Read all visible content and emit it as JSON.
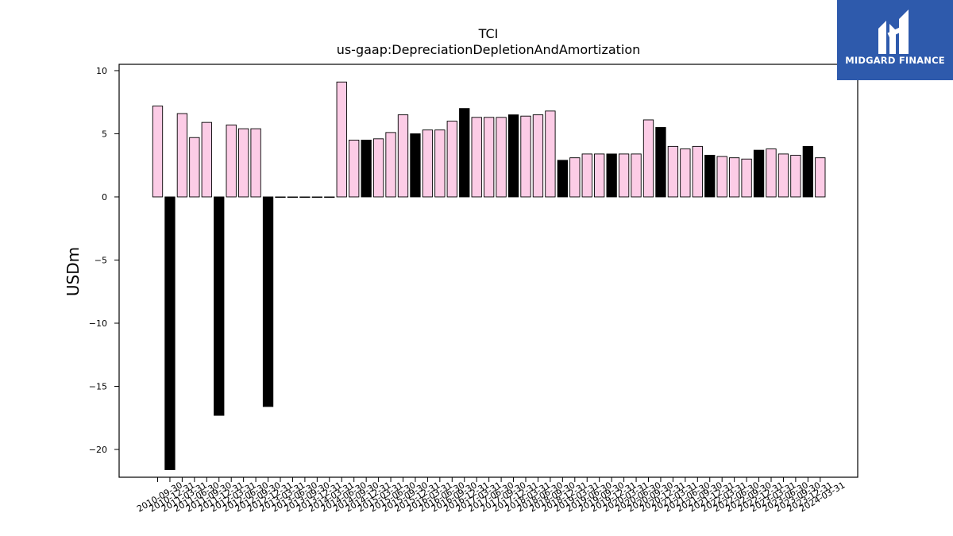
{
  "logo": {
    "text": "MIDGARD FINANCE",
    "icon": "midgard-logo-icon"
  },
  "chart_data": {
    "type": "bar",
    "title": "TCI",
    "subtitle": "us-gaap:DepreciationDepletionAndAmortization",
    "xlabel": "",
    "ylabel": "USDm",
    "ylim": [
      -22.2,
      10.5
    ],
    "yticks": [
      10,
      5,
      0,
      -5,
      -10,
      -15,
      -20
    ],
    "ytick_labels": [
      "10",
      "5",
      "0",
      "−5",
      "−10",
      "−15",
      "−20"
    ],
    "colors": {
      "normal": "#fccce6",
      "annual": "#000000",
      "edge": "#000000"
    },
    "grid": false,
    "categories": [
      "2010-09-30",
      "2010-12-31",
      "2011-03-31",
      "2011-06-30",
      "2011-09-30",
      "2011-12-31",
      "2012-03-31",
      "2012-06-30",
      "2012-09-30",
      "2012-12-31",
      "2013-03-31",
      "2013-06-30",
      "2013-09-30",
      "2013-12-31",
      "2014-03-31",
      "2014-06-30",
      "2014-09-30",
      "2014-12-31",
      "2015-03-31",
      "2015-06-30",
      "2015-09-30",
      "2015-12-31",
      "2016-03-31",
      "2016-06-30",
      "2016-09-30",
      "2016-12-31",
      "2017-03-31",
      "2017-06-30",
      "2017-09-30",
      "2017-12-31",
      "2018-03-31",
      "2018-06-30",
      "2018-09-30",
      "2018-12-31",
      "2019-03-31",
      "2019-06-30",
      "2019-09-30",
      "2019-12-31",
      "2020-03-31",
      "2020-06-30",
      "2020-09-30",
      "2020-12-31",
      "2021-03-31",
      "2021-06-30",
      "2021-09-30",
      "2021-12-31",
      "2022-03-31",
      "2022-06-30",
      "2022-09-30",
      "2022-12-31",
      "2023-03-31",
      "2023-06-30",
      "2023-09-30",
      "2023-12-31",
      "2024-03-31"
    ],
    "values": [
      7.2,
      -21.6,
      6.6,
      4.7,
      5.9,
      -17.3,
      5.7,
      5.4,
      5.4,
      -16.6,
      0,
      0,
      0,
      0,
      0,
      9.1,
      4.5,
      4.5,
      4.6,
      5.1,
      6.5,
      5.0,
      5.3,
      5.3,
      6.0,
      7.0,
      6.3,
      6.3,
      6.3,
      6.5,
      6.4,
      6.5,
      6.8,
      2.9,
      3.1,
      3.4,
      3.4,
      3.4,
      3.4,
      3.4,
      6.1,
      5.5,
      4.0,
      3.8,
      4.0,
      3.3,
      3.2,
      3.1,
      3.0,
      3.7,
      3.8,
      3.4,
      3.3,
      4.0,
      3.1
    ],
    "annual": [
      false,
      true,
      false,
      false,
      false,
      true,
      false,
      false,
      false,
      true,
      false,
      false,
      false,
      false,
      false,
      false,
      false,
      true,
      false,
      false,
      false,
      true,
      false,
      false,
      false,
      true,
      false,
      false,
      false,
      true,
      false,
      false,
      false,
      true,
      false,
      false,
      false,
      true,
      false,
      false,
      false,
      true,
      false,
      false,
      false,
      true,
      false,
      false,
      false,
      true,
      false,
      false,
      false,
      true,
      false
    ]
  }
}
